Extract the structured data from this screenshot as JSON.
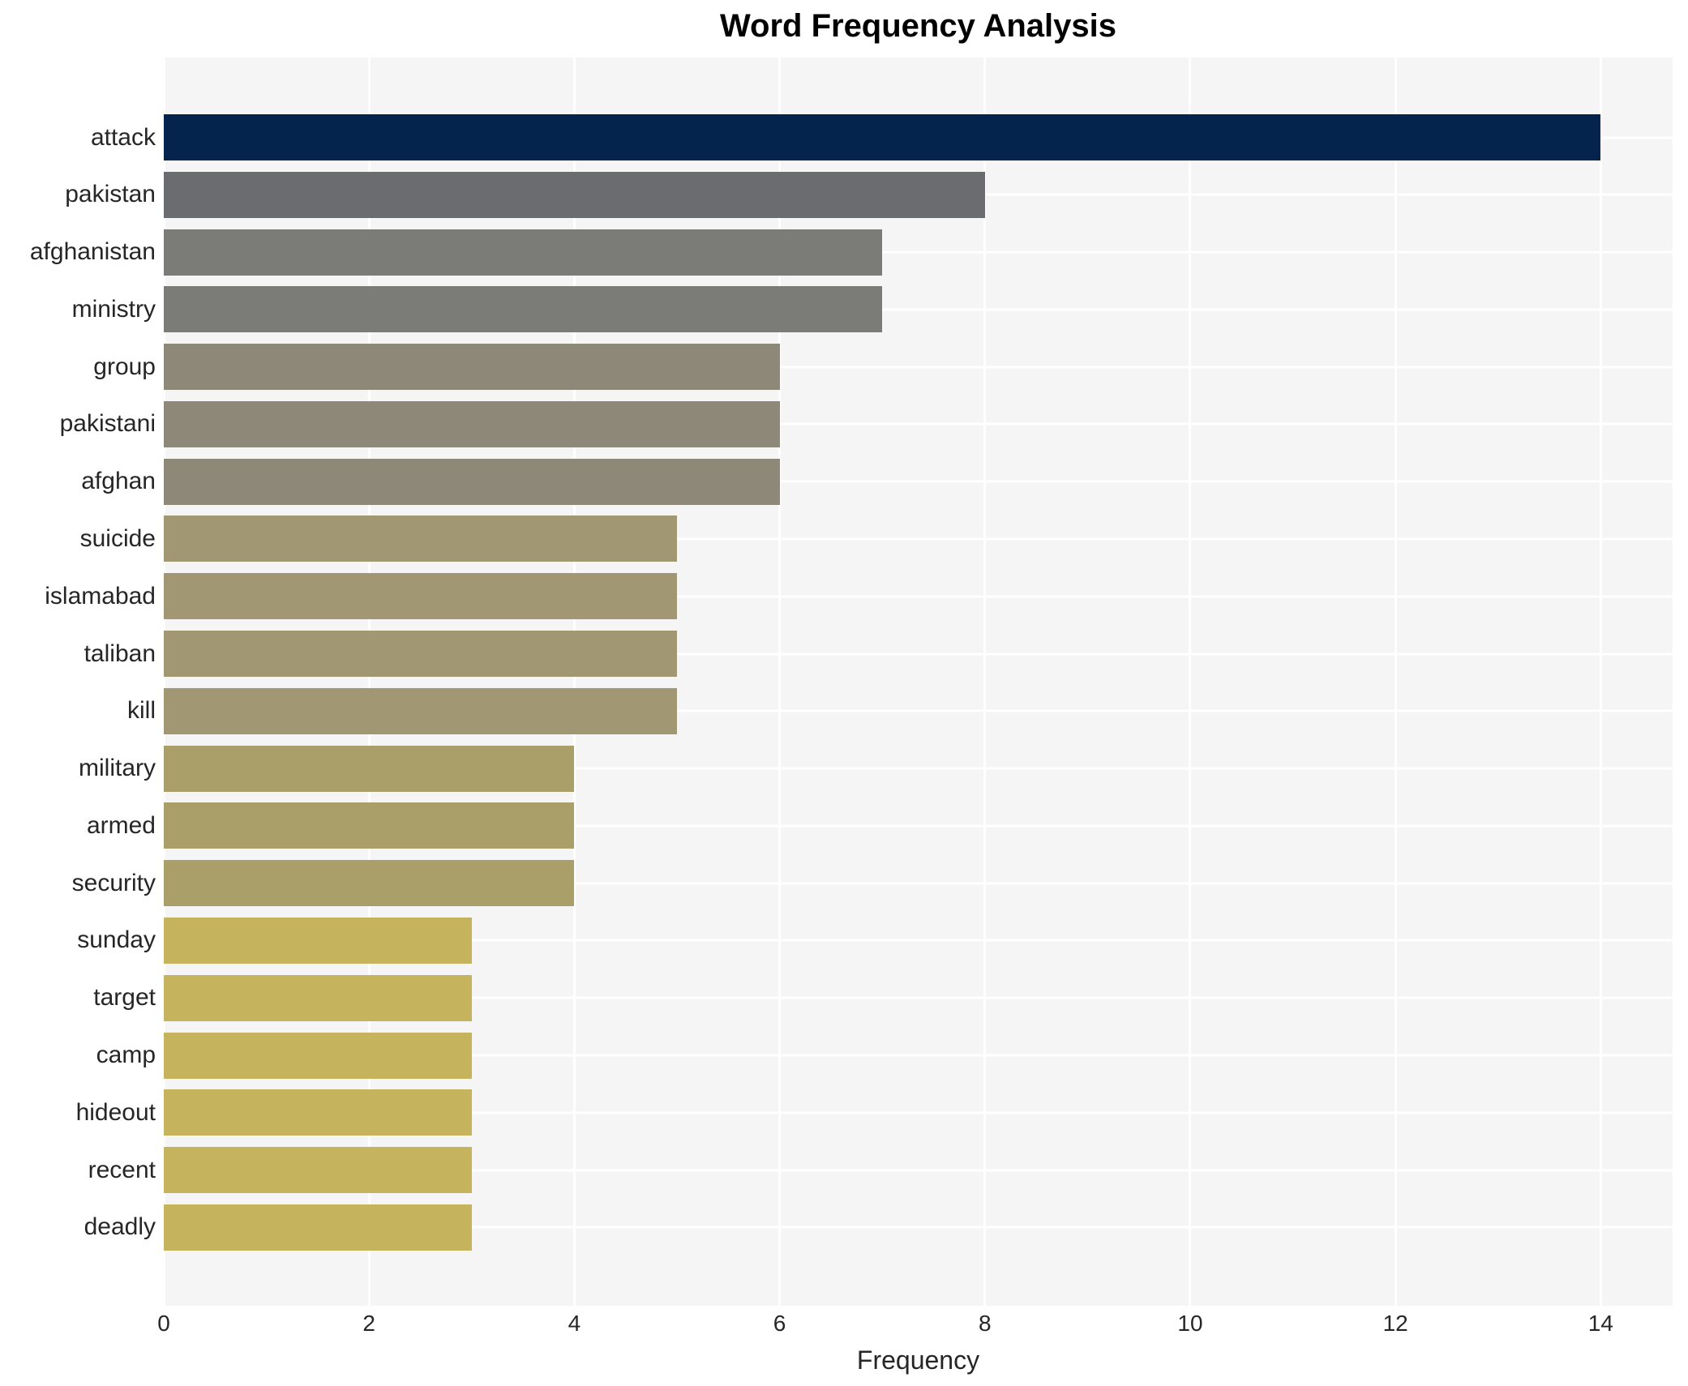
{
  "title": "Word Frequency Analysis",
  "chart_data": {
    "type": "bar",
    "orientation": "horizontal",
    "title": "Word Frequency Analysis",
    "xlabel": "Frequency",
    "ylabel": "",
    "categories": [
      "attack",
      "pakistan",
      "afghanistan",
      "ministry",
      "group",
      "pakistani",
      "afghan",
      "suicide",
      "islamabad",
      "taliban",
      "kill",
      "military",
      "armed",
      "security",
      "sunday",
      "target",
      "camp",
      "hideout",
      "recent",
      "deadly"
    ],
    "values": [
      14,
      8,
      7,
      7,
      6,
      6,
      6,
      5,
      5,
      5,
      5,
      4,
      4,
      4,
      3,
      3,
      3,
      3,
      3,
      3
    ],
    "bar_colors": [
      "#04234d",
      "#6a6c70",
      "#7b7b78",
      "#7b7b78",
      "#8e8879",
      "#8e8879",
      "#8e8879",
      "#a19873",
      "#a19873",
      "#a19873",
      "#a19873",
      "#ab9f69",
      "#ab9f69",
      "#ab9f69",
      "#c5b35e",
      "#c5b35e",
      "#c5b35e",
      "#c5b35e",
      "#c5b35e",
      "#c5b35e"
    ],
    "x_ticks": [
      0,
      2,
      4,
      6,
      8,
      10,
      12,
      14
    ],
    "xlim": [
      0,
      14.7
    ],
    "grid": "white gridlines on light gray panel, vertical at x ticks and horizontal at category centers",
    "legend": "none",
    "colors": {
      "plot_background": "#f5f5f6",
      "page_background": "#ffffff",
      "gridline": "#ffffff",
      "title_text": "#000000",
      "axis_text": "#262626"
    }
  }
}
